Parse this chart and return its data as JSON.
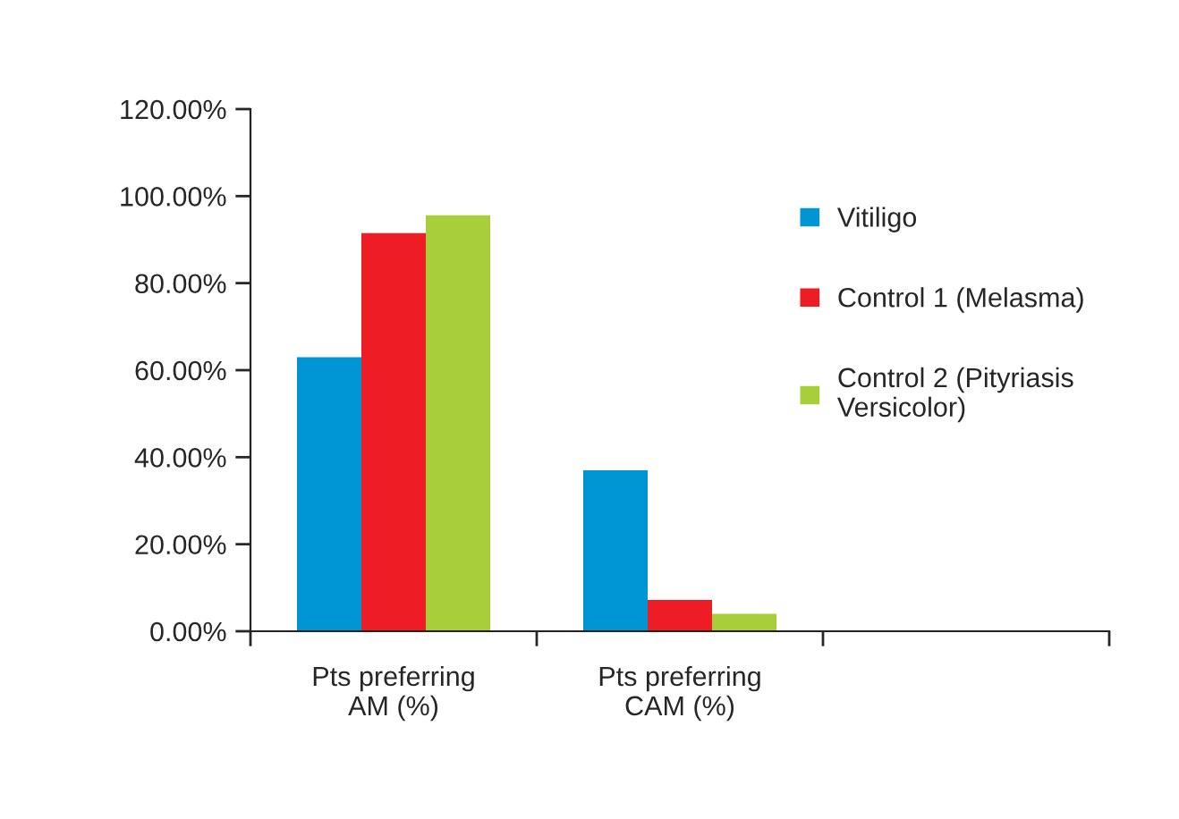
{
  "chart_data": {
    "type": "bar",
    "categories": [
      "Pts preferring\nAM (%)",
      "Pts preferring\nCAM (%)",
      null
    ],
    "series": [
      {
        "name": "Vitiligo",
        "color": "#0096d6",
        "values": [
          63,
          37,
          null
        ]
      },
      {
        "name": "Control 1 (Melasma)",
        "color": "#ee1c25",
        "values": [
          91.5,
          7.2,
          null
        ]
      },
      {
        "name": "Control 2 (Pityriasis\nVersicolor)",
        "color": "#a8cf3a",
        "values": [
          95.6,
          4,
          null
        ]
      }
    ],
    "ylim": [
      0,
      120
    ],
    "yticks": [
      {
        "value": 0,
        "label": "0.00%"
      },
      {
        "value": 20,
        "label": "20.00%"
      },
      {
        "value": 40,
        "label": "40.00%"
      },
      {
        "value": 60,
        "label": "60.00%"
      },
      {
        "value": 80,
        "label": "80.00%"
      },
      {
        "value": 100,
        "label": "100.00%"
      },
      {
        "value": 120,
        "label": "120.00%"
      }
    ],
    "grid": false,
    "legend": "right"
  }
}
